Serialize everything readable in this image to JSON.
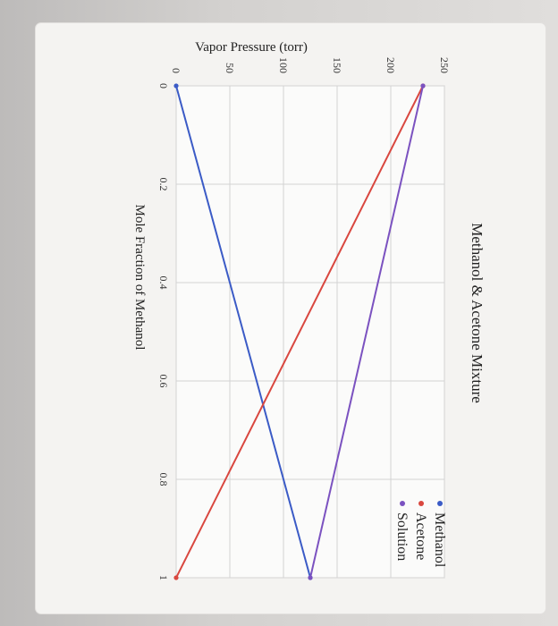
{
  "chart_data": {
    "type": "line",
    "title": "Methanol & Acetone Mixture",
    "xlabel": "Mole Fraction of Methanol",
    "ylabel": "Vapor Pressure (torr)",
    "xlim": [
      0,
      1
    ],
    "ylim": [
      0,
      250
    ],
    "x_ticks": [
      "0",
      "0.2",
      "0.4",
      "0.6",
      "0.8",
      "1"
    ],
    "y_ticks": [
      "0",
      "50",
      "100",
      "150",
      "200",
      "250"
    ],
    "grid": true,
    "legend_position": "top-right",
    "series": [
      {
        "name": "Methanol",
        "color": "#3b5bc6",
        "x": [
          0,
          1
        ],
        "y": [
          0,
          125
        ]
      },
      {
        "name": "Acetone",
        "color": "#d9473f",
        "x": [
          0,
          1
        ],
        "y": [
          230,
          0
        ]
      },
      {
        "name": "Solution",
        "color": "#7b52c0",
        "x": [
          0,
          1
        ],
        "y": [
          230,
          125
        ]
      }
    ]
  }
}
